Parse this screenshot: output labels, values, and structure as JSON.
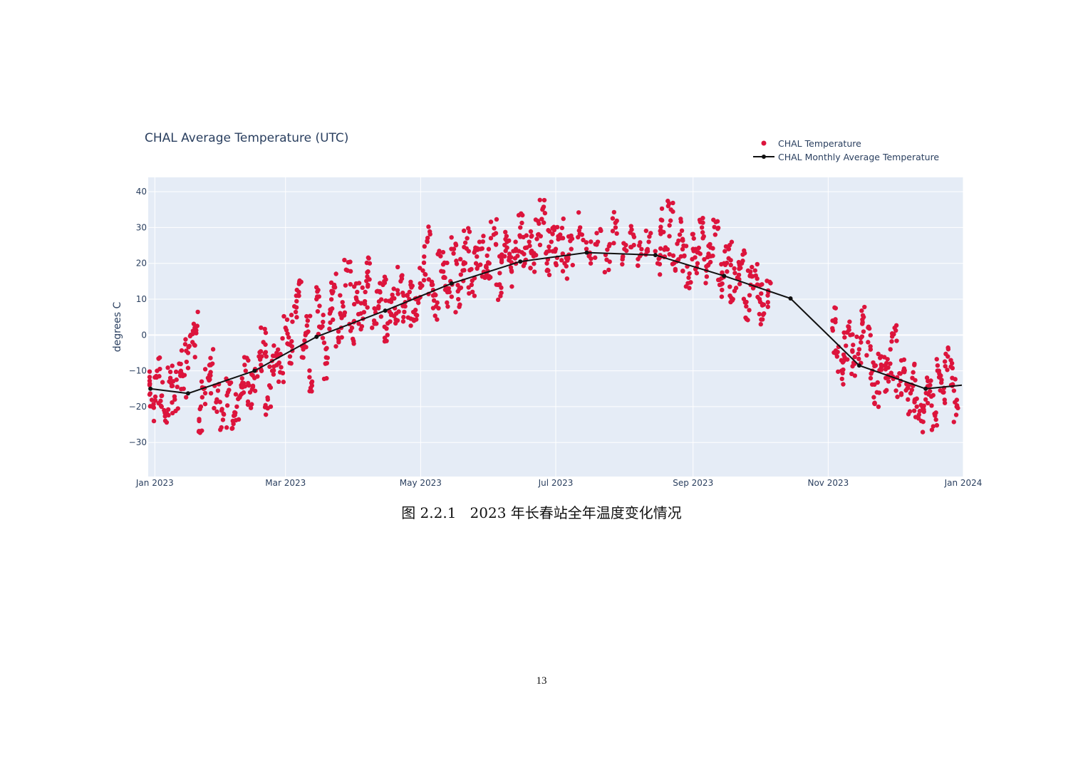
{
  "document": {
    "caption": "图 2.2.1   2023 年长春站全年温度变化情况",
    "page_number": "13"
  },
  "chart_data": {
    "type": "scatter",
    "title": "CHAL Average Temperature (UTC)",
    "xlabel": "",
    "ylabel": "degrees C",
    "xlim": [
      "2022-12-29",
      "2024-01-01"
    ],
    "ylim": [
      -39.5,
      44
    ],
    "grid": true,
    "legend_position": "top-right",
    "x_ticks": [
      {
        "date": "2023-01-01",
        "label": "Jan 2023"
      },
      {
        "date": "2023-03-01",
        "label": "Mar 2023"
      },
      {
        "date": "2023-05-01",
        "label": "May 2023"
      },
      {
        "date": "2023-07-01",
        "label": "Jul 2023"
      },
      {
        "date": "2023-09-01",
        "label": "Sep 2023"
      },
      {
        "date": "2023-11-01",
        "label": "Nov 2023"
      },
      {
        "date": "2024-01-01",
        "label": "Jan 2024"
      }
    ],
    "y_ticks": [
      {
        "value": 40,
        "label": "40"
      },
      {
        "value": 30,
        "label": "30"
      },
      {
        "value": 20,
        "label": "20"
      },
      {
        "value": 10,
        "label": "10"
      },
      {
        "value": 0,
        "label": "0"
      },
      {
        "value": -10,
        "label": "−10"
      },
      {
        "value": -20,
        "label": "−20"
      },
      {
        "value": -30,
        "label": "−30"
      }
    ],
    "series": [
      {
        "name": "CHAL Temperature",
        "type": "scatter",
        "color": "#dc143c",
        "points": [
          [
            "2022-12-29",
            -14
          ],
          [
            "2022-12-31",
            -20
          ],
          [
            "2023-01-02",
            -10
          ],
          [
            "2023-01-04",
            -17
          ],
          [
            "2023-01-06",
            -22
          ],
          [
            "2023-01-08",
            -12
          ],
          [
            "2023-01-10",
            -18
          ],
          [
            "2023-01-12",
            -8
          ],
          [
            "2023-01-14",
            -15
          ],
          [
            "2023-01-16",
            -5
          ],
          [
            "2023-01-18",
            -2
          ],
          [
            "2023-01-19",
            2
          ],
          [
            "2023-01-21",
            -24
          ],
          [
            "2023-01-23",
            -15
          ],
          [
            "2023-01-25",
            -12
          ],
          [
            "2023-01-27",
            -8
          ],
          [
            "2023-01-29",
            -18
          ],
          [
            "2023-02-01",
            -22
          ],
          [
            "2023-02-03",
            -16
          ],
          [
            "2023-02-05",
            -26
          ],
          [
            "2023-02-07",
            -20
          ],
          [
            "2023-02-09",
            -14
          ],
          [
            "2023-02-11",
            -10
          ],
          [
            "2023-02-13",
            -16
          ],
          [
            "2023-02-15",
            -12
          ],
          [
            "2023-02-17",
            -6
          ],
          [
            "2023-02-19",
            -2
          ],
          [
            "2023-02-21",
            -18
          ],
          [
            "2023-02-23",
            -10
          ],
          [
            "2023-02-25",
            -5
          ],
          [
            "2023-02-27",
            -9
          ],
          [
            "2023-03-01",
            2
          ],
          [
            "2023-03-03",
            -6
          ],
          [
            "2023-03-05",
            8
          ],
          [
            "2023-03-07",
            12
          ],
          [
            "2023-03-09",
            -4
          ],
          [
            "2023-03-11",
            4
          ],
          [
            "2023-03-13",
            -13
          ],
          [
            "2023-03-15",
            10
          ],
          [
            "2023-03-17",
            2
          ],
          [
            "2023-03-19",
            -8
          ],
          [
            "2023-03-21",
            6
          ],
          [
            "2023-03-23",
            14
          ],
          [
            "2023-03-25",
            -2
          ],
          [
            "2023-03-27",
            8
          ],
          [
            "2023-03-29",
            18
          ],
          [
            "2023-03-31",
            2
          ],
          [
            "2023-04-02",
            10
          ],
          [
            "2023-04-04",
            6
          ],
          [
            "2023-04-06",
            12
          ],
          [
            "2023-04-08",
            20
          ],
          [
            "2023-04-10",
            4
          ],
          [
            "2023-04-12",
            8
          ],
          [
            "2023-04-14",
            14
          ],
          [
            "2023-04-16",
            0
          ],
          [
            "2023-04-18",
            10
          ],
          [
            "2023-04-20",
            6
          ],
          [
            "2023-04-22",
            15
          ],
          [
            "2023-04-24",
            8
          ],
          [
            "2023-04-26",
            12
          ],
          [
            "2023-04-28",
            4
          ],
          [
            "2023-04-30",
            10
          ],
          [
            "2023-05-02",
            18
          ],
          [
            "2023-05-04",
            26
          ],
          [
            "2023-05-06",
            14
          ],
          [
            "2023-05-08",
            8
          ],
          [
            "2023-05-10",
            22
          ],
          [
            "2023-05-12",
            16
          ],
          [
            "2023-05-14",
            12
          ],
          [
            "2023-05-16",
            24
          ],
          [
            "2023-05-18",
            10
          ],
          [
            "2023-05-20",
            18
          ],
          [
            "2023-05-22",
            27
          ],
          [
            "2023-05-24",
            14
          ],
          [
            "2023-05-26",
            20
          ],
          [
            "2023-05-28",
            24
          ],
          [
            "2023-05-30",
            16
          ],
          [
            "2023-06-01",
            20
          ],
          [
            "2023-06-03",
            28
          ],
          [
            "2023-06-05",
            14
          ],
          [
            "2023-06-07",
            22
          ],
          [
            "2023-06-09",
            26
          ],
          [
            "2023-06-11",
            18
          ],
          [
            "2023-06-13",
            24
          ],
          [
            "2023-06-15",
            30
          ],
          [
            "2023-06-17",
            20
          ],
          [
            "2023-06-19",
            26
          ],
          [
            "2023-06-21",
            22
          ],
          [
            "2023-06-23",
            28
          ],
          [
            "2023-06-25",
            35
          ],
          [
            "2023-06-27",
            20
          ],
          [
            "2023-06-29",
            26
          ],
          [
            "2023-07-01",
            24
          ],
          [
            "2023-07-03",
            28
          ],
          [
            "2023-07-05",
            20
          ],
          [
            "2023-07-08",
            24
          ],
          [
            "2023-07-12",
            30
          ],
          [
            "2023-07-16",
            22
          ],
          [
            "2023-07-20",
            26
          ],
          [
            "2023-07-24",
            21
          ],
          [
            "2023-07-28",
            30
          ],
          [
            "2023-08-01",
            24
          ],
          [
            "2023-08-05",
            28
          ],
          [
            "2023-08-08",
            22
          ],
          [
            "2023-08-12",
            26
          ],
          [
            "2023-08-16",
            20
          ],
          [
            "2023-08-18",
            32
          ],
          [
            "2023-08-20",
            24
          ],
          [
            "2023-08-22",
            35
          ],
          [
            "2023-08-24",
            18
          ],
          [
            "2023-08-26",
            28
          ],
          [
            "2023-08-28",
            22
          ],
          [
            "2023-08-30",
            16
          ],
          [
            "2023-09-01",
            24
          ],
          [
            "2023-09-03",
            20
          ],
          [
            "2023-09-05",
            30
          ],
          [
            "2023-09-07",
            18
          ],
          [
            "2023-09-09",
            22
          ],
          [
            "2023-09-11",
            28
          ],
          [
            "2023-09-13",
            14
          ],
          [
            "2023-09-15",
            20
          ],
          [
            "2023-09-17",
            24
          ],
          [
            "2023-09-19",
            10
          ],
          [
            "2023-09-21",
            16
          ],
          [
            "2023-09-23",
            20
          ],
          [
            "2023-09-25",
            8
          ],
          [
            "2023-09-27",
            14
          ],
          [
            "2023-09-29",
            18
          ],
          [
            "2023-10-01",
            10
          ],
          [
            "2023-10-03",
            6
          ],
          [
            "2023-10-05",
            12
          ],
          [
            "2023-11-03",
            4
          ],
          [
            "2023-11-05",
            -6
          ],
          [
            "2023-11-07",
            -10
          ],
          [
            "2023-11-09",
            -3
          ],
          [
            "2023-11-11",
            0
          ],
          [
            "2023-11-13",
            -8
          ],
          [
            "2023-11-15",
            -4
          ],
          [
            "2023-11-17",
            5
          ],
          [
            "2023-11-19",
            -2
          ],
          [
            "2023-11-21",
            -10
          ],
          [
            "2023-11-23",
            -16
          ],
          [
            "2023-11-25",
            -6
          ],
          [
            "2023-11-27",
            -12
          ],
          [
            "2023-11-29",
            -8
          ],
          [
            "2023-12-01",
            2
          ],
          [
            "2023-12-03",
            -14
          ],
          [
            "2023-12-05",
            -10
          ],
          [
            "2023-12-07",
            -18
          ],
          [
            "2023-12-09",
            -12
          ],
          [
            "2023-12-11",
            -20
          ],
          [
            "2023-12-13",
            -24
          ],
          [
            "2023-12-15",
            -18
          ],
          [
            "2023-12-17",
            -14
          ],
          [
            "2023-12-19",
            -22
          ],
          [
            "2023-12-21",
            -10
          ],
          [
            "2023-12-23",
            -16
          ],
          [
            "2023-12-25",
            -6
          ],
          [
            "2023-12-27",
            -12
          ],
          [
            "2023-12-29",
            -20
          ]
        ]
      },
      {
        "name": "CHAL Monthly Average Temperature",
        "type": "line",
        "color": "#111111",
        "points": [
          [
            "2022-12-30",
            -15
          ],
          [
            "2023-01-16",
            -16.3
          ],
          [
            "2023-02-15",
            -10
          ],
          [
            "2023-03-15",
            -0.5
          ],
          [
            "2023-04-15",
            6.8
          ],
          [
            "2023-05-15",
            14.4
          ],
          [
            "2023-06-15",
            20.5
          ],
          [
            "2023-07-15",
            23
          ],
          [
            "2023-08-15",
            22.3
          ],
          [
            "2023-09-15",
            16.5
          ],
          [
            "2023-10-15",
            10.2
          ],
          [
            "2023-11-15",
            -8.5
          ],
          [
            "2023-12-15",
            -15
          ],
          [
            "2024-01-01",
            -14
          ]
        ]
      }
    ]
  }
}
